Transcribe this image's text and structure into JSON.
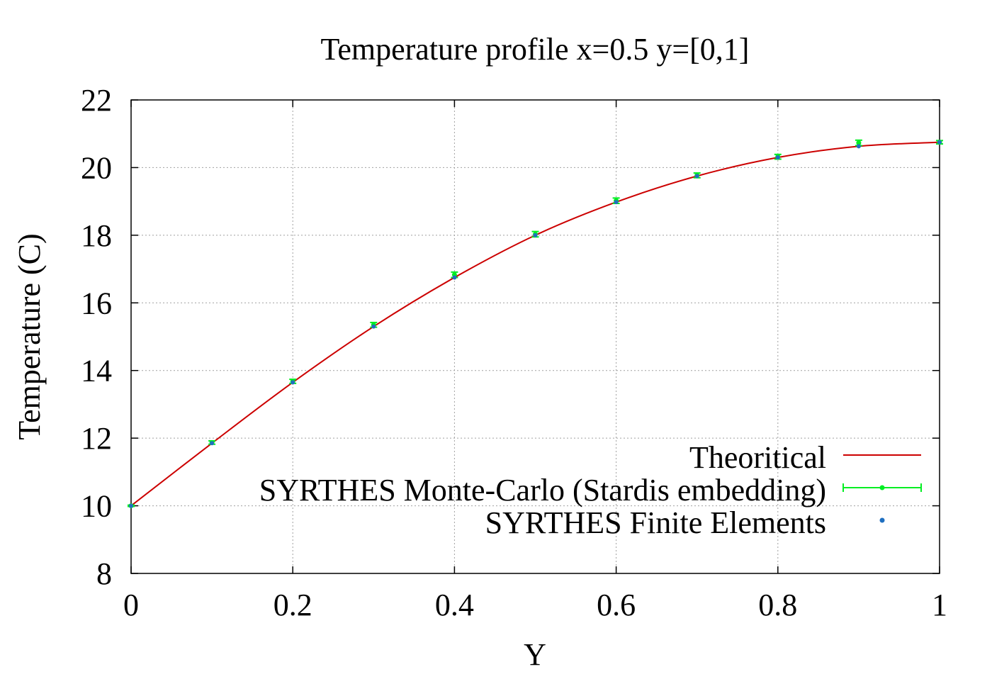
{
  "chart_data": {
    "type": "line",
    "title": "Temperature profile x=0.5 y=[0,1]",
    "xlabel": "Y",
    "ylabel": "Temperature (C)",
    "xlim": [
      0,
      1
    ],
    "ylim": [
      8,
      22
    ],
    "grid": true,
    "legend_position": "bottom-right",
    "x_ticks": [
      0,
      0.2,
      0.4,
      0.6,
      0.8,
      1
    ],
    "x_tick_labels": [
      "0",
      "0.2",
      "0.4",
      "0.6",
      "0.8",
      "1"
    ],
    "y_ticks": [
      8,
      10,
      12,
      14,
      16,
      18,
      20,
      22
    ],
    "y_tick_labels": [
      "8",
      "10",
      "12",
      "14",
      "16",
      "18",
      "20",
      "22"
    ],
    "x": [
      0,
      0.1,
      0.2,
      0.3,
      0.4,
      0.5,
      0.6,
      0.7,
      0.8,
      0.9,
      1.0
    ],
    "series": [
      {
        "name": "Theoritical",
        "style": "line",
        "color": "#cc0000",
        "values": [
          10.0,
          11.85,
          13.65,
          15.3,
          16.75,
          18.0,
          18.98,
          19.75,
          20.3,
          20.63,
          20.75
        ]
      },
      {
        "name": "SYRTHES Monte-Carlo (Stardis embedding)",
        "style": "errorbars",
        "color": "#00ee22",
        "values": [
          10.0,
          11.87,
          13.68,
          15.35,
          16.83,
          18.03,
          19.02,
          19.77,
          20.32,
          20.73,
          20.75
        ],
        "errors": [
          0.02,
          0.05,
          0.06,
          0.07,
          0.08,
          0.08,
          0.08,
          0.07,
          0.07,
          0.08,
          0.05
        ]
      },
      {
        "name": "SYRTHES Finite Elements",
        "style": "points",
        "color": "#1f6fc0",
        "values": [
          10.0,
          11.85,
          13.65,
          15.3,
          16.75,
          18.0,
          18.98,
          19.75,
          20.3,
          20.63,
          20.75
        ]
      }
    ]
  }
}
